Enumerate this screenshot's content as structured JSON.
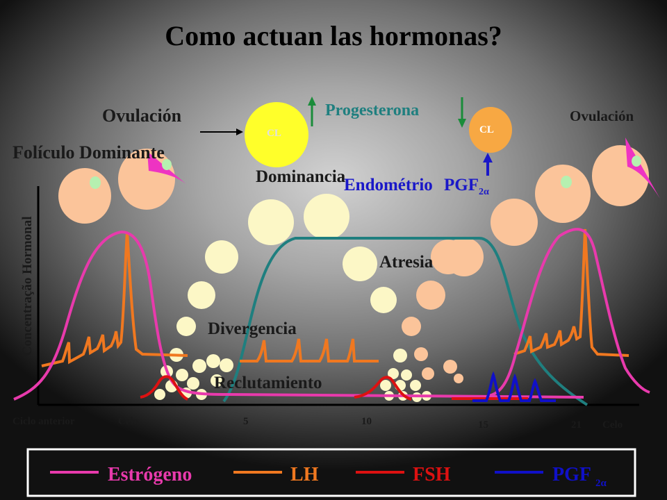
{
  "title": "Como actuan las hormonas?",
  "labels": {
    "ovulacion_left": "Ovulación",
    "ovulacion_right": "Ovulación",
    "foliculo": "Folículo Dominante",
    "progesterona": "Progesterona",
    "dominancia": "Dominancia",
    "endometrio": "Endométrio",
    "pgf_main": "PGF",
    "pgf_sub": "2α",
    "atresia": "Atresia",
    "divergencia": "Divergencia",
    "reclutamiento": "Reclutamiento",
    "cl_big": "CL",
    "cl_small": "CL"
  },
  "y_axis_label": "Concentração Hormonal",
  "x_ticks": [
    "Ciclo anterior",
    "Celo",
    "5",
    "10",
    "15",
    "21",
    "Celo"
  ],
  "legend": [
    {
      "label": "Estrógeno",
      "color": "#e83aac",
      "sub": ""
    },
    {
      "label": "LH",
      "color": "#f07820",
      "sub": ""
    },
    {
      "label": "FSH",
      "color": "#dd1111",
      "sub": ""
    },
    {
      "label": "PGF",
      "color": "#1010c8",
      "sub": "2α"
    }
  ],
  "colors": {
    "title": "#000000",
    "text": "#1a1a1a",
    "blue_text": "#1a18c8",
    "teal": "#1f7f7f",
    "progesterone_line": "#1f7f7f",
    "follicle_orange": "#fbc49a",
    "follicle_yellow": "#fcf7c6",
    "cl_yellow": "#ffff2a",
    "cl_orange": "#f7a843",
    "ovulation_magenta": "#ee33c2",
    "oocyte_green": "#b6f0b0",
    "arrow_green": "#1a8c3a"
  }
}
